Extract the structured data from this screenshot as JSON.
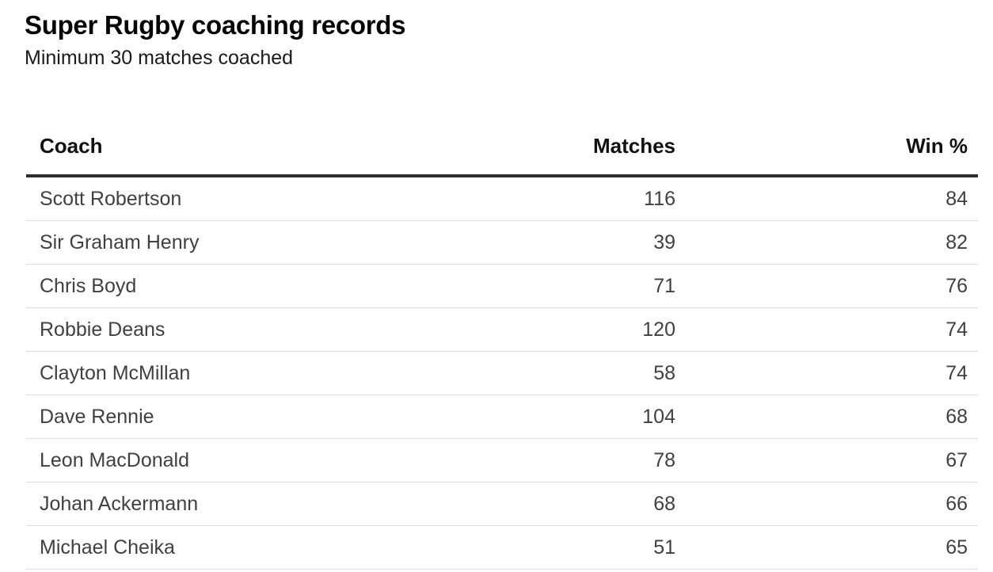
{
  "chart_data": {
    "type": "table",
    "title": "Super Rugby coaching records",
    "subtitle": "Minimum 30 matches coached",
    "columns": [
      "Coach",
      "Matches",
      "Win %"
    ],
    "rows": [
      {
        "coach": "Scott Robertson",
        "matches": 116,
        "win_pct": 84
      },
      {
        "coach": "Sir Graham Henry",
        "matches": 39,
        "win_pct": 82
      },
      {
        "coach": "Chris Boyd",
        "matches": 71,
        "win_pct": 76
      },
      {
        "coach": "Robbie Deans",
        "matches": 120,
        "win_pct": 74
      },
      {
        "coach": "Clayton McMillan",
        "matches": 58,
        "win_pct": 74
      },
      {
        "coach": "Dave Rennie",
        "matches": 104,
        "win_pct": 68
      },
      {
        "coach": "Leon MacDonald",
        "matches": 78,
        "win_pct": 67
      },
      {
        "coach": "Johan Ackermann",
        "matches": 68,
        "win_pct": 66
      },
      {
        "coach": "Michael Cheika",
        "matches": 51,
        "win_pct": 65
      }
    ],
    "layout_hints": {
      "coach_align": "left",
      "matches_align": "right",
      "win_pct_align": "right",
      "last_row_cut_off_at_bottom": true
    }
  },
  "colors": {
    "background": "#ffffff",
    "title_text": "#050505",
    "subtitle_text": "#1a1a1a",
    "header_text": "#111111",
    "body_text": "#404040",
    "header_rule": "#2e2e2e",
    "row_divider": "#dcdcdc"
  }
}
